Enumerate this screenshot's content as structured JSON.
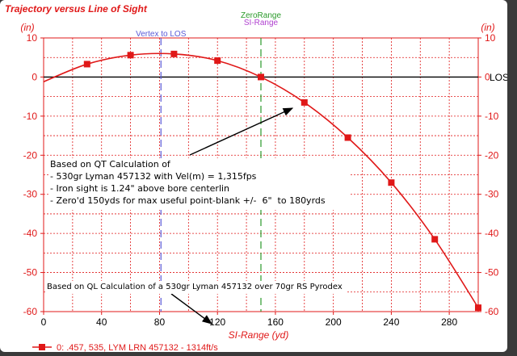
{
  "chart_data": {
    "type": "line",
    "title": "Trajectory versus Line of Sight",
    "xlabel": "SI-Range (yd)",
    "ylabel_left": "(in)",
    "ylabel_right": "(in)",
    "xlim": [
      0,
      300
    ],
    "ylim": [
      -60,
      10
    ],
    "xticks": [
      0,
      40,
      80,
      120,
      160,
      200,
      240,
      280
    ],
    "yticks": [
      10,
      0,
      -10,
      -20,
      -30,
      -40,
      -50,
      -60
    ],
    "grid": true,
    "zero_line_label": "LOS",
    "vlines": [
      {
        "x": 81,
        "label": "Vertex to LOS",
        "color": "#5a5ad8"
      },
      {
        "x": 150,
        "label": "ZeroRange",
        "color": "#2a9a2a"
      },
      {
        "x": 150,
        "label": "SI-Range",
        "color": "#b040d0"
      }
    ],
    "series": [
      {
        "name": "0: .457, 535, LYM LRN 457132 - 1314ft/s",
        "color": "#e01818",
        "x": [
          0,
          30,
          60,
          90,
          120,
          150,
          180,
          210,
          240,
          270,
          300
        ],
        "y": [
          -1.2,
          3.3,
          5.6,
          5.9,
          4.2,
          0.0,
          -6.5,
          -15.5,
          -27.0,
          -41.5,
          -59.0
        ]
      }
    ],
    "legend_position": "bottom-left"
  },
  "annotations": {
    "qt_note": [
      "Based on QT Calculation of",
      "- 530gr Lyman 457132 with Vel(m) = 1,315fps",
      "- Iron sight is 1.24\" above bore centerlin",
      "- Zero'd 150yds for max useful point-blank +/-  6\"  to 180yrds"
    ],
    "ql_note": "Based on QL Calculation of a 530gr Lyman 457132 over 70gr RS Pyrodex"
  }
}
